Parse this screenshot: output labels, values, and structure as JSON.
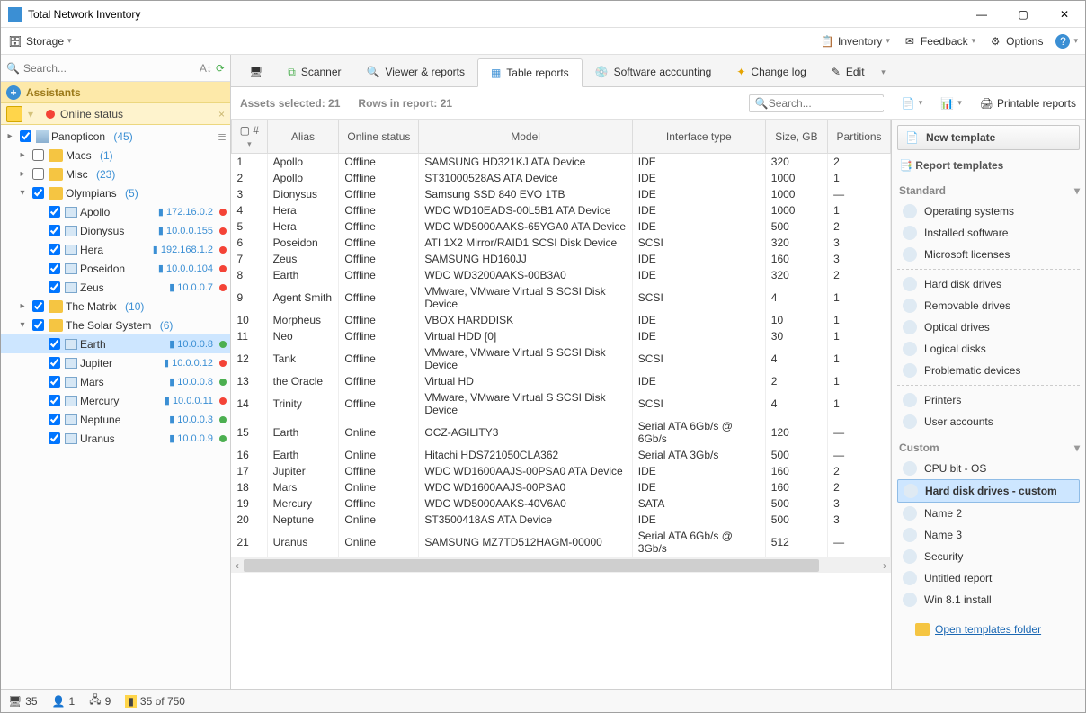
{
  "window": {
    "title": "Total Network Inventory"
  },
  "menubar": {
    "storage": "Storage",
    "inventory": "Inventory",
    "feedback": "Feedback",
    "options": "Options"
  },
  "leftSearch": {
    "placeholder": "Search..."
  },
  "assistants": {
    "header": "Assistants",
    "online_status": "Online status"
  },
  "tree": {
    "root": {
      "name": "Panopticon",
      "count": "(45)"
    },
    "macs": {
      "name": "Macs",
      "count": "(1)"
    },
    "misc": {
      "name": "Misc",
      "count": "(23)"
    },
    "olymp": {
      "name": "Olympians",
      "count": "(5)"
    },
    "olymp_nodes": [
      {
        "name": "Apollo",
        "ip": "172.16.0.2",
        "dot": "red"
      },
      {
        "name": "Dionysus",
        "ip": "10.0.0.155",
        "dot": "red"
      },
      {
        "name": "Hera",
        "ip": "192.168.1.2",
        "dot": "red"
      },
      {
        "name": "Poseidon",
        "ip": "10.0.0.104",
        "dot": "red"
      },
      {
        "name": "Zeus",
        "ip": "10.0.0.7",
        "dot": "red"
      }
    ],
    "matrix": {
      "name": "The Matrix",
      "count": "(10)"
    },
    "solar": {
      "name": "The Solar System",
      "count": "(6)"
    },
    "solar_nodes": [
      {
        "name": "Earth",
        "ip": "10.0.0.8",
        "dot": "green",
        "sel": true
      },
      {
        "name": "Jupiter",
        "ip": "10.0.0.12",
        "dot": "red"
      },
      {
        "name": "Mars",
        "ip": "10.0.0.8",
        "dot": "green"
      },
      {
        "name": "Mercury",
        "ip": "10.0.0.11",
        "dot": "red"
      },
      {
        "name": "Neptune",
        "ip": "10.0.0.3",
        "dot": "green"
      },
      {
        "name": "Uranus",
        "ip": "10.0.0.9",
        "dot": "green"
      }
    ]
  },
  "tabs": {
    "scanner": "Scanner",
    "viewer": "Viewer & reports",
    "table": "Table reports",
    "software": "Software accounting",
    "changelog": "Change log",
    "edit": "Edit"
  },
  "subbar": {
    "assets": "Assets selected: 21",
    "rows": "Rows in report: 21",
    "search_ph": "Search...",
    "printable": "Printable reports"
  },
  "columns": [
    "#",
    "Alias",
    "Online status",
    "Model",
    "Interface type",
    "Size, GB",
    "Partitions"
  ],
  "rows": [
    [
      "1",
      "Apollo",
      "Offline",
      "SAMSUNG HD321KJ ATA Device",
      "IDE",
      "320",
      "2"
    ],
    [
      "2",
      "Apollo",
      "Offline",
      "ST31000528AS ATA Device",
      "IDE",
      "1000",
      "1"
    ],
    [
      "3",
      "Dionysus",
      "Offline",
      "Samsung SSD 840 EVO 1TB",
      "IDE",
      "1000",
      "—"
    ],
    [
      "4",
      "Hera",
      "Offline",
      "WDC WD10EADS-00L5B1 ATA Device",
      "IDE",
      "1000",
      "1"
    ],
    [
      "5",
      "Hera",
      "Offline",
      "WDC WD5000AAKS-65YGA0 ATA Device",
      "IDE",
      "500",
      "2"
    ],
    [
      "6",
      "Poseidon",
      "Offline",
      "ATI 1X2 Mirror/RAID1 SCSI Disk Device",
      "SCSI",
      "320",
      "3"
    ],
    [
      "7",
      "Zeus",
      "Offline",
      "SAMSUNG HD160JJ",
      "IDE",
      "160",
      "3"
    ],
    [
      "8",
      "Earth",
      "Offline",
      "WDC WD3200AAKS-00B3A0",
      "IDE",
      "320",
      "2"
    ],
    [
      "9",
      "Agent Smith",
      "Offline",
      "VMware, VMware Virtual S SCSI Disk Device",
      "SCSI",
      "4",
      "1"
    ],
    [
      "10",
      "Morpheus",
      "Offline",
      "VBOX HARDDISK",
      "IDE",
      "10",
      "1"
    ],
    [
      "11",
      "Neo",
      "Offline",
      "Virtual  HDD [0]",
      "IDE",
      "30",
      "1"
    ],
    [
      "12",
      "Tank",
      "Offline",
      "VMware, VMware Virtual S SCSI Disk Device",
      "SCSI",
      "4",
      "1"
    ],
    [
      "13",
      "the Oracle",
      "Offline",
      "Virtual HD",
      "IDE",
      "2",
      "1"
    ],
    [
      "14",
      "Trinity",
      "Offline",
      "VMware, VMware Virtual S SCSI Disk Device",
      "SCSI",
      "4",
      "1"
    ],
    [
      "15",
      "Earth",
      "Online",
      "OCZ-AGILITY3",
      "Serial ATA 6Gb/s @ 6Gb/s",
      "120",
      "—"
    ],
    [
      "16",
      "Earth",
      "Online",
      "Hitachi HDS721050CLA362",
      "Serial ATA 3Gb/s",
      "500",
      "—"
    ],
    [
      "17",
      "Jupiter",
      "Offline",
      "WDC WD1600AAJS-00PSA0 ATA Device",
      "IDE",
      "160",
      "2"
    ],
    [
      "18",
      "Mars",
      "Online",
      "WDC WD1600AAJS-00PSA0",
      "IDE",
      "160",
      "2"
    ],
    [
      "19",
      "Mercury",
      "Offline",
      "WDC WD5000AAKS-40V6A0",
      "SATA",
      "500",
      "3"
    ],
    [
      "20",
      "Neptune",
      "Online",
      "ST3500418AS ATA Device",
      "IDE",
      "500",
      "3"
    ],
    [
      "21",
      "Uranus",
      "Online",
      "SAMSUNG MZ7TD512HAGM-00000",
      "Serial ATA 6Gb/s @ 3Gb/s",
      "512",
      "—"
    ]
  ],
  "right": {
    "new_template": "New template",
    "report_templates": "Report templates",
    "standard": "Standard",
    "std_items": [
      "Operating systems",
      "Installed software",
      "Microsoft licenses"
    ],
    "hw_items": [
      "Hard disk drives",
      "Removable drives",
      "Optical drives",
      "Logical disks",
      "Problematic devices"
    ],
    "misc_items": [
      "Printers",
      "User accounts"
    ],
    "custom": "Custom",
    "custom_items": [
      "CPU bit - OS",
      "Hard disk drives - custom",
      "Name 2",
      "Name 3",
      "Security",
      "Untitled report",
      "Win 8.1 install"
    ],
    "open_link": "Open templates folder"
  },
  "status": {
    "s1": "35",
    "s2": "1",
    "s3": "9",
    "s4": "35 of 750"
  }
}
